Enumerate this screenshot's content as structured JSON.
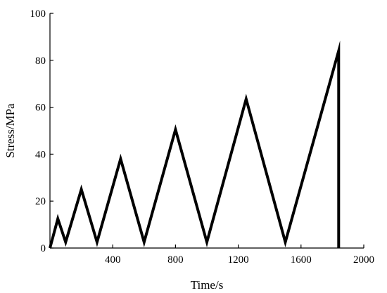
{
  "chart_data": {
    "type": "line",
    "xlabel": "Time/s",
    "ylabel": "Stress/MPa",
    "xlim": [
      0,
      2000
    ],
    "ylim": [
      0,
      100
    ],
    "xticks": [
      400,
      800,
      1200,
      1600,
      2000
    ],
    "yticks": [
      0,
      20,
      40,
      60,
      80,
      100
    ],
    "grid": false,
    "series": [
      {
        "color": "#000000",
        "x": [
          0,
          50,
          100,
          200,
          300,
          450,
          600,
          800,
          1000,
          1250,
          1500,
          1840,
          1840
        ],
        "y": [
          0,
          12.5,
          2.5,
          25,
          2.5,
          38,
          2.5,
          50.5,
          2.5,
          63.5,
          2.5,
          84,
          0
        ]
      }
    ]
  }
}
